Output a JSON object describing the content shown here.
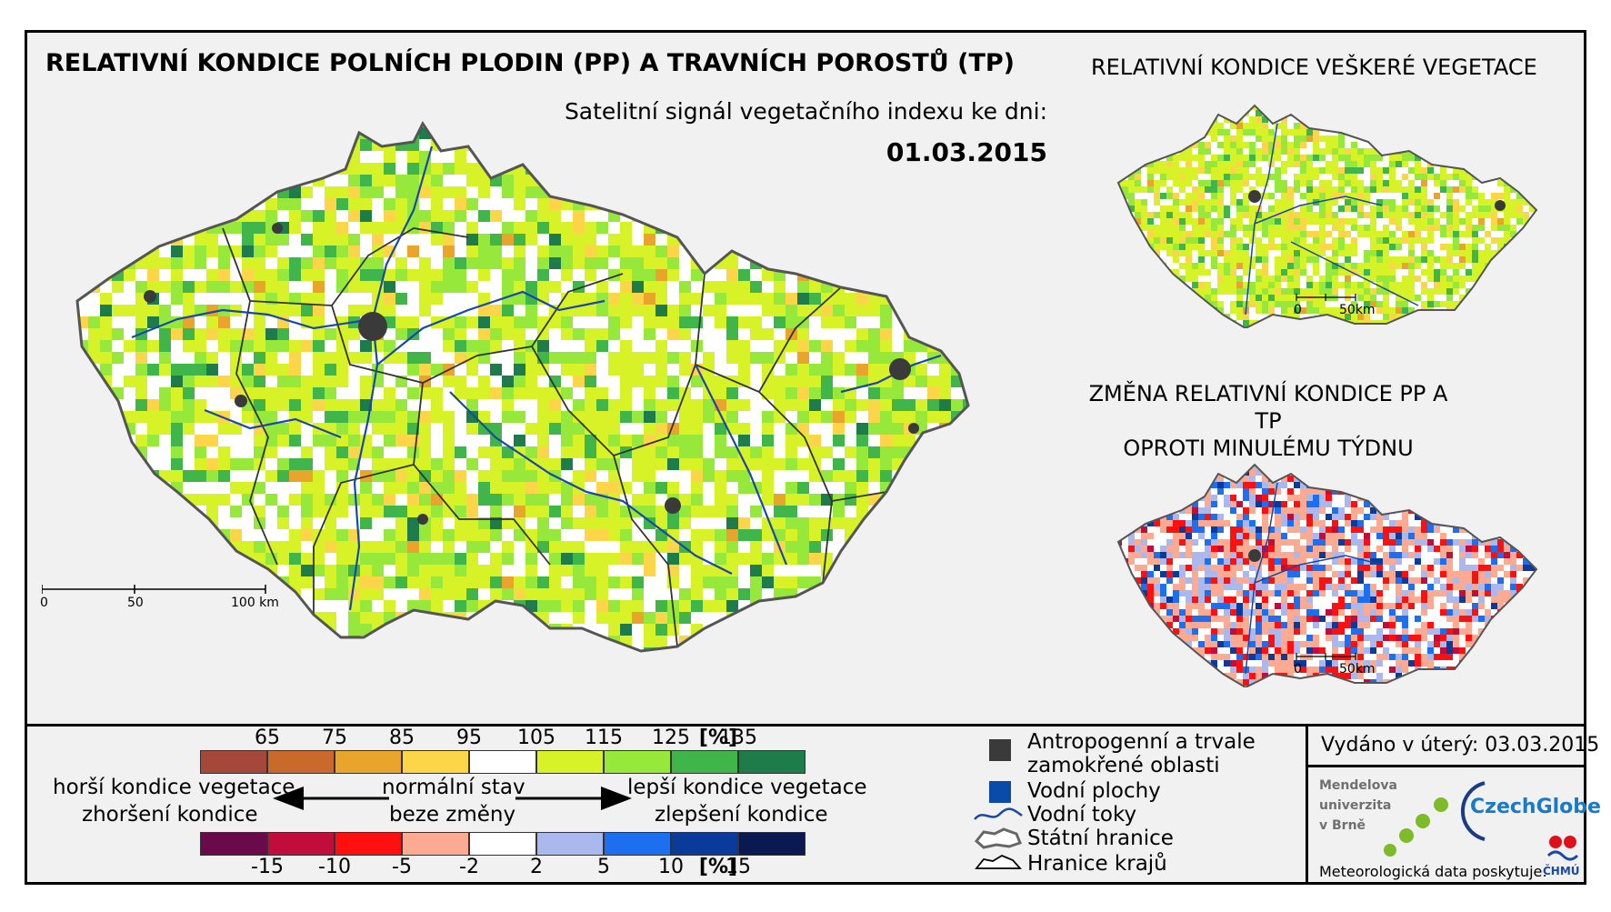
{
  "title_main": "RELATIVNÍ KONDICE POLNÍCH PLODIN (PP) A TRAVNÍCH POROSTŮ (TP)",
  "subtitle": "Satelitní signál vegetačního indexu ke dni:",
  "date": "01.03.2015",
  "title_all_vegetation": "RELATIVNÍ KONDICE VEŠKERÉ VEGETACE",
  "title_change_line1": "ZMĚNA RELATIVNÍ KONDICE PP A TP",
  "title_change_line2": "OPROTI MINULÉMU TÝDNU",
  "scalebar_main": {
    "t0": "0",
    "t1": "50",
    "t2": "100 km"
  },
  "scalebar_small": {
    "t0": "0",
    "t1": "50km"
  },
  "legend": {
    "condition_ticks": [
      "65",
      "75",
      "85",
      "95",
      "105",
      "115",
      "125",
      "135"
    ],
    "condition_unit": "[%]",
    "condition_colors": [
      "#a5483a",
      "#c9692b",
      "#e8a42b",
      "#fdd548",
      "#ffffff",
      "#d7f227",
      "#96e83a",
      "#3fb54a",
      "#1e7c4b"
    ],
    "change_ticks": [
      "-15",
      "-10",
      "-5",
      "-2",
      "2",
      "5",
      "10",
      "15"
    ],
    "change_unit": "[%]",
    "change_colors": [
      "#6b0a4a",
      "#c00d3c",
      "#ff1010",
      "#fcaa92",
      "#ffffff",
      "#aab8ee",
      "#1e6ef0",
      "#0a3a9a",
      "#0a1a50"
    ],
    "worse_1": "horší kondice vegetace",
    "worse_2": "zhoršení kondice",
    "normal_1": "normální stav",
    "normal_2": "beze změny",
    "better_1": "lepší kondice vegetace",
    "better_2": "zlepšení kondice"
  },
  "symbols": {
    "anthropogenic_1": "Antropogenní a trvale",
    "anthropogenic_2": "zamokřené oblasti",
    "water_bodies": "Vodní plochy",
    "rivers": "Vodní toky",
    "state_border": "Státní hranice",
    "region_border": "Hranice krajů",
    "anthro_color": "#3a3a3a",
    "water_color": "#0a4aa8",
    "river_color": "#1848a8"
  },
  "issued": "Vydáno v úterý: 03.03.2015",
  "logos": {
    "mendel_1": "Mendelova",
    "mendel_2": "univerzita",
    "mendel_3": "v Brně",
    "czechglobe": "CzechGlobe",
    "chmu": "ČHMÚ"
  },
  "meteo_credit": "Meteorologická data poskytuje:"
}
